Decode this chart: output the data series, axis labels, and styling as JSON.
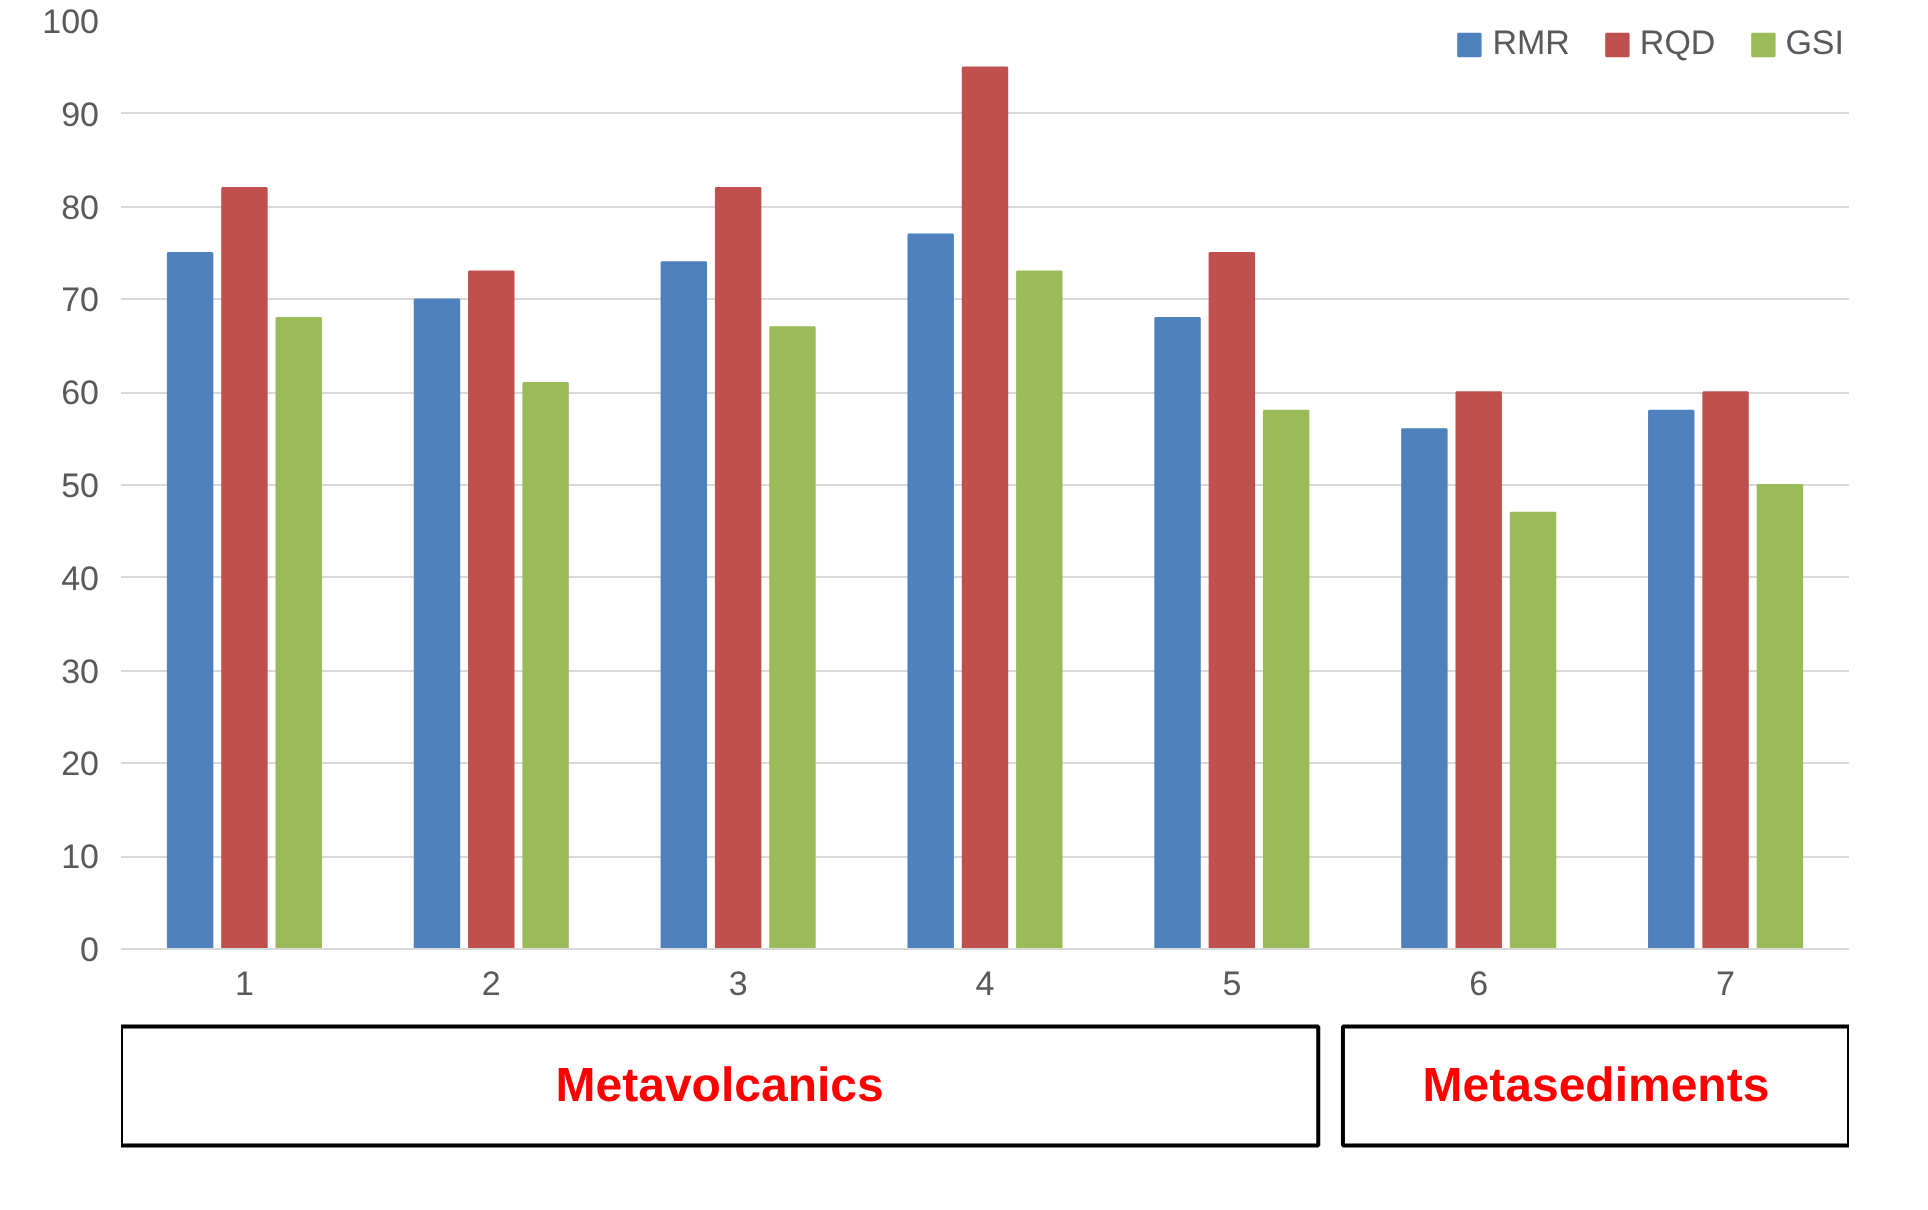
{
  "chart_data": {
    "type": "bar",
    "categories": [
      "1",
      "2",
      "3",
      "4",
      "5",
      "6",
      "7"
    ],
    "series": [
      {
        "name": "RMR",
        "color": "#4f81bd",
        "values": [
          75,
          70,
          74,
          77,
          68,
          56,
          58
        ]
      },
      {
        "name": "RQD",
        "color": "#c0504d",
        "values": [
          82,
          73,
          82,
          95,
          75,
          60,
          60
        ]
      },
      {
        "name": "GSI",
        "color": "#9bbb59",
        "values": [
          68,
          61,
          67,
          73,
          58,
          47,
          50
        ]
      }
    ],
    "ylim": [
      0,
      100
    ],
    "yticks": [
      0,
      10,
      20,
      30,
      40,
      50,
      60,
      70,
      80,
      90,
      100
    ],
    "grid": "y",
    "legend": "top right",
    "annotations": [
      "Metavolcanics",
      "Metasediments"
    ]
  }
}
